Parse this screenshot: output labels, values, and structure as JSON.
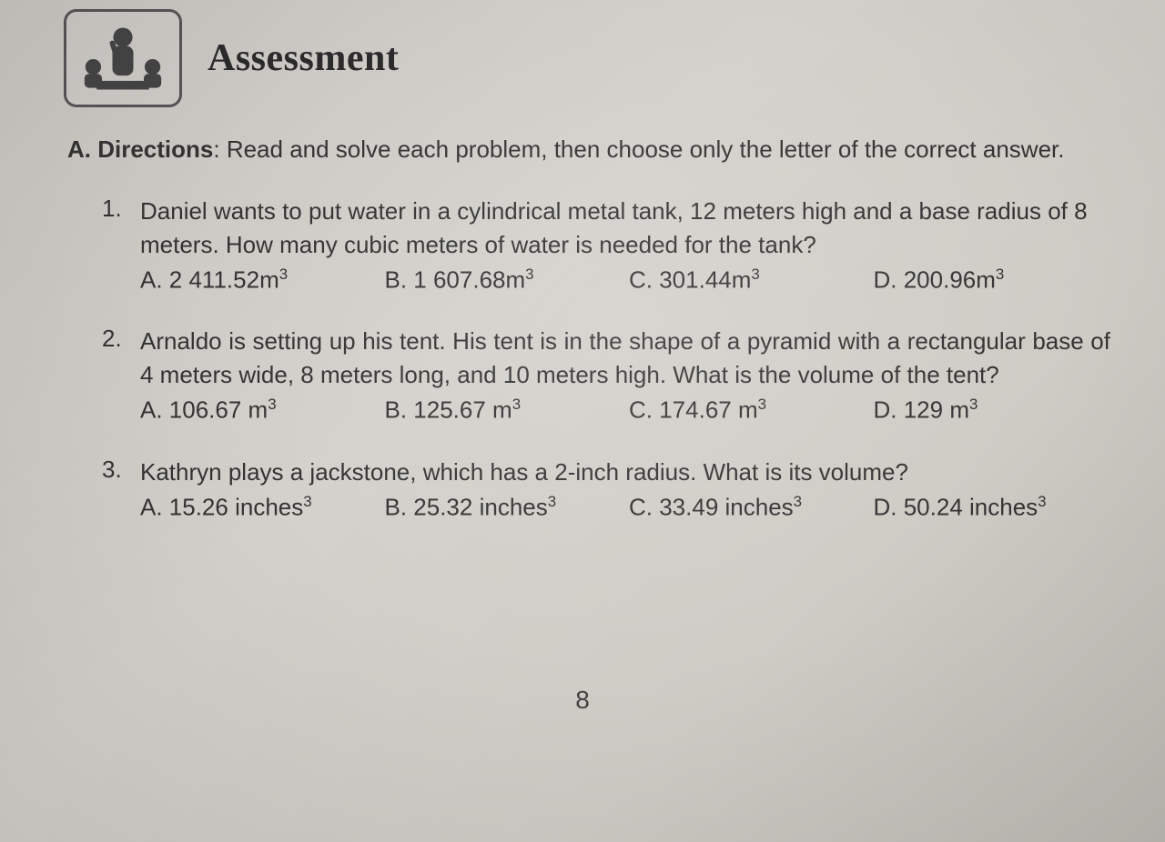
{
  "header": {
    "title": "Assessment"
  },
  "directions": {
    "label": "A. Directions",
    "text": ": Read and solve each problem, then choose only the letter of the correct answer."
  },
  "questions": [
    {
      "num": "1.",
      "text": "Daniel wants to put water in a cylindrical metal tank, 12 meters high and a base radius of 8 meters. How many cubic meters of water is needed for the tank?",
      "justify": false,
      "choices": [
        {
          "letter": "A.",
          "value": "2 411.52m",
          "unit_sup": "3"
        },
        {
          "letter": "B.",
          "value": "1 607.68m",
          "unit_sup": "3"
        },
        {
          "letter": "C.",
          "value": "301.44m",
          "unit_sup": "3"
        },
        {
          "letter": "D.",
          "value": "200.96m",
          "unit_sup": "3"
        }
      ]
    },
    {
      "num": "2.",
      "text": "Arnaldo is setting up his tent. His tent is in the shape of a pyramid with a rectangular base of 4 meters wide, 8 meters long, and 10 meters high. What is the volume of the tent?",
      "justify": true,
      "choices": [
        {
          "letter": "A.",
          "value": " 106.67 m",
          "unit_sup": "3"
        },
        {
          "letter": "B.",
          "value": "125.67 m",
          "unit_sup": "3"
        },
        {
          "letter": "C.",
          "value": " 174.67 m",
          "unit_sup": "3"
        },
        {
          "letter": "D.",
          "value": " 129 m",
          "unit_sup": "3"
        }
      ]
    },
    {
      "num": "3.",
      "text": "Kathryn plays a jackstone, which has a 2-inch radius. What is its volume?",
      "justify": false,
      "choices": [
        {
          "letter": "A.",
          "value": "15.26 inches",
          "unit_sup": "3"
        },
        {
          "letter": "B.",
          "value": "25.32 inches",
          "unit_sup": "3"
        },
        {
          "letter": "C.",
          "value": "33.49 inches",
          "unit_sup": "3"
        },
        {
          "letter": "D.",
          "value": "50.24 inches",
          "unit_sup": "3"
        }
      ]
    }
  ],
  "page_number": "8",
  "style": {
    "background_grad": [
      "#c8c5c0",
      "#d4d1cc",
      "#cfccc6",
      "#bebab4"
    ],
    "text_color": "#333333",
    "title_color": "#2b2b2b",
    "icon_border": "#555555",
    "title_font": "Georgia serif bold",
    "body_font": "Arial",
    "title_fontsize": 42,
    "body_fontsize": 26,
    "page_num_fontsize": 28
  }
}
